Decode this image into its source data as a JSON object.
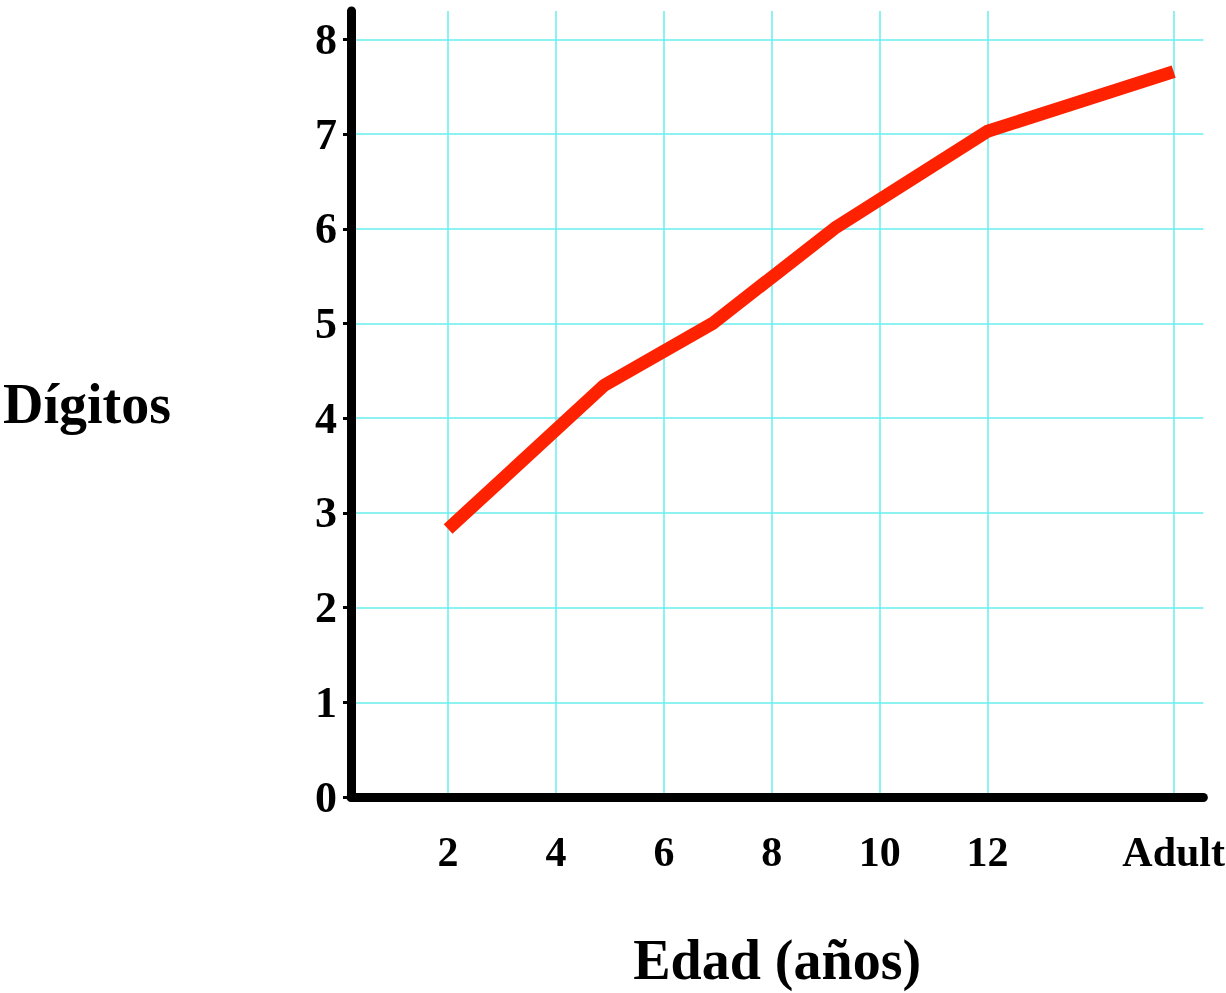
{
  "chart_data": {
    "type": "line",
    "xlabel": "Edad (años)",
    "ylabel": "Dígitos",
    "x": [
      2,
      4.9,
      6.9,
      9.2,
      12,
      15.45
    ],
    "series": [
      {
        "color": "#ff2200",
        "values": [
          2.83,
          4.35,
          5.0,
          6.02,
          7.03,
          7.66
        ]
      }
    ],
    "xlim": [
      0.2,
      16
    ],
    "xticks": [
      2,
      4,
      6,
      8,
      10,
      12,
      {
        "value": 15.45,
        "label": "Adult"
      }
    ],
    "ylim": [
      0,
      8.3
    ],
    "yticks": [
      0,
      1,
      2,
      3,
      4,
      5,
      6,
      7,
      8
    ],
    "grid": true,
    "marker": "none",
    "line_style": "solid"
  }
}
